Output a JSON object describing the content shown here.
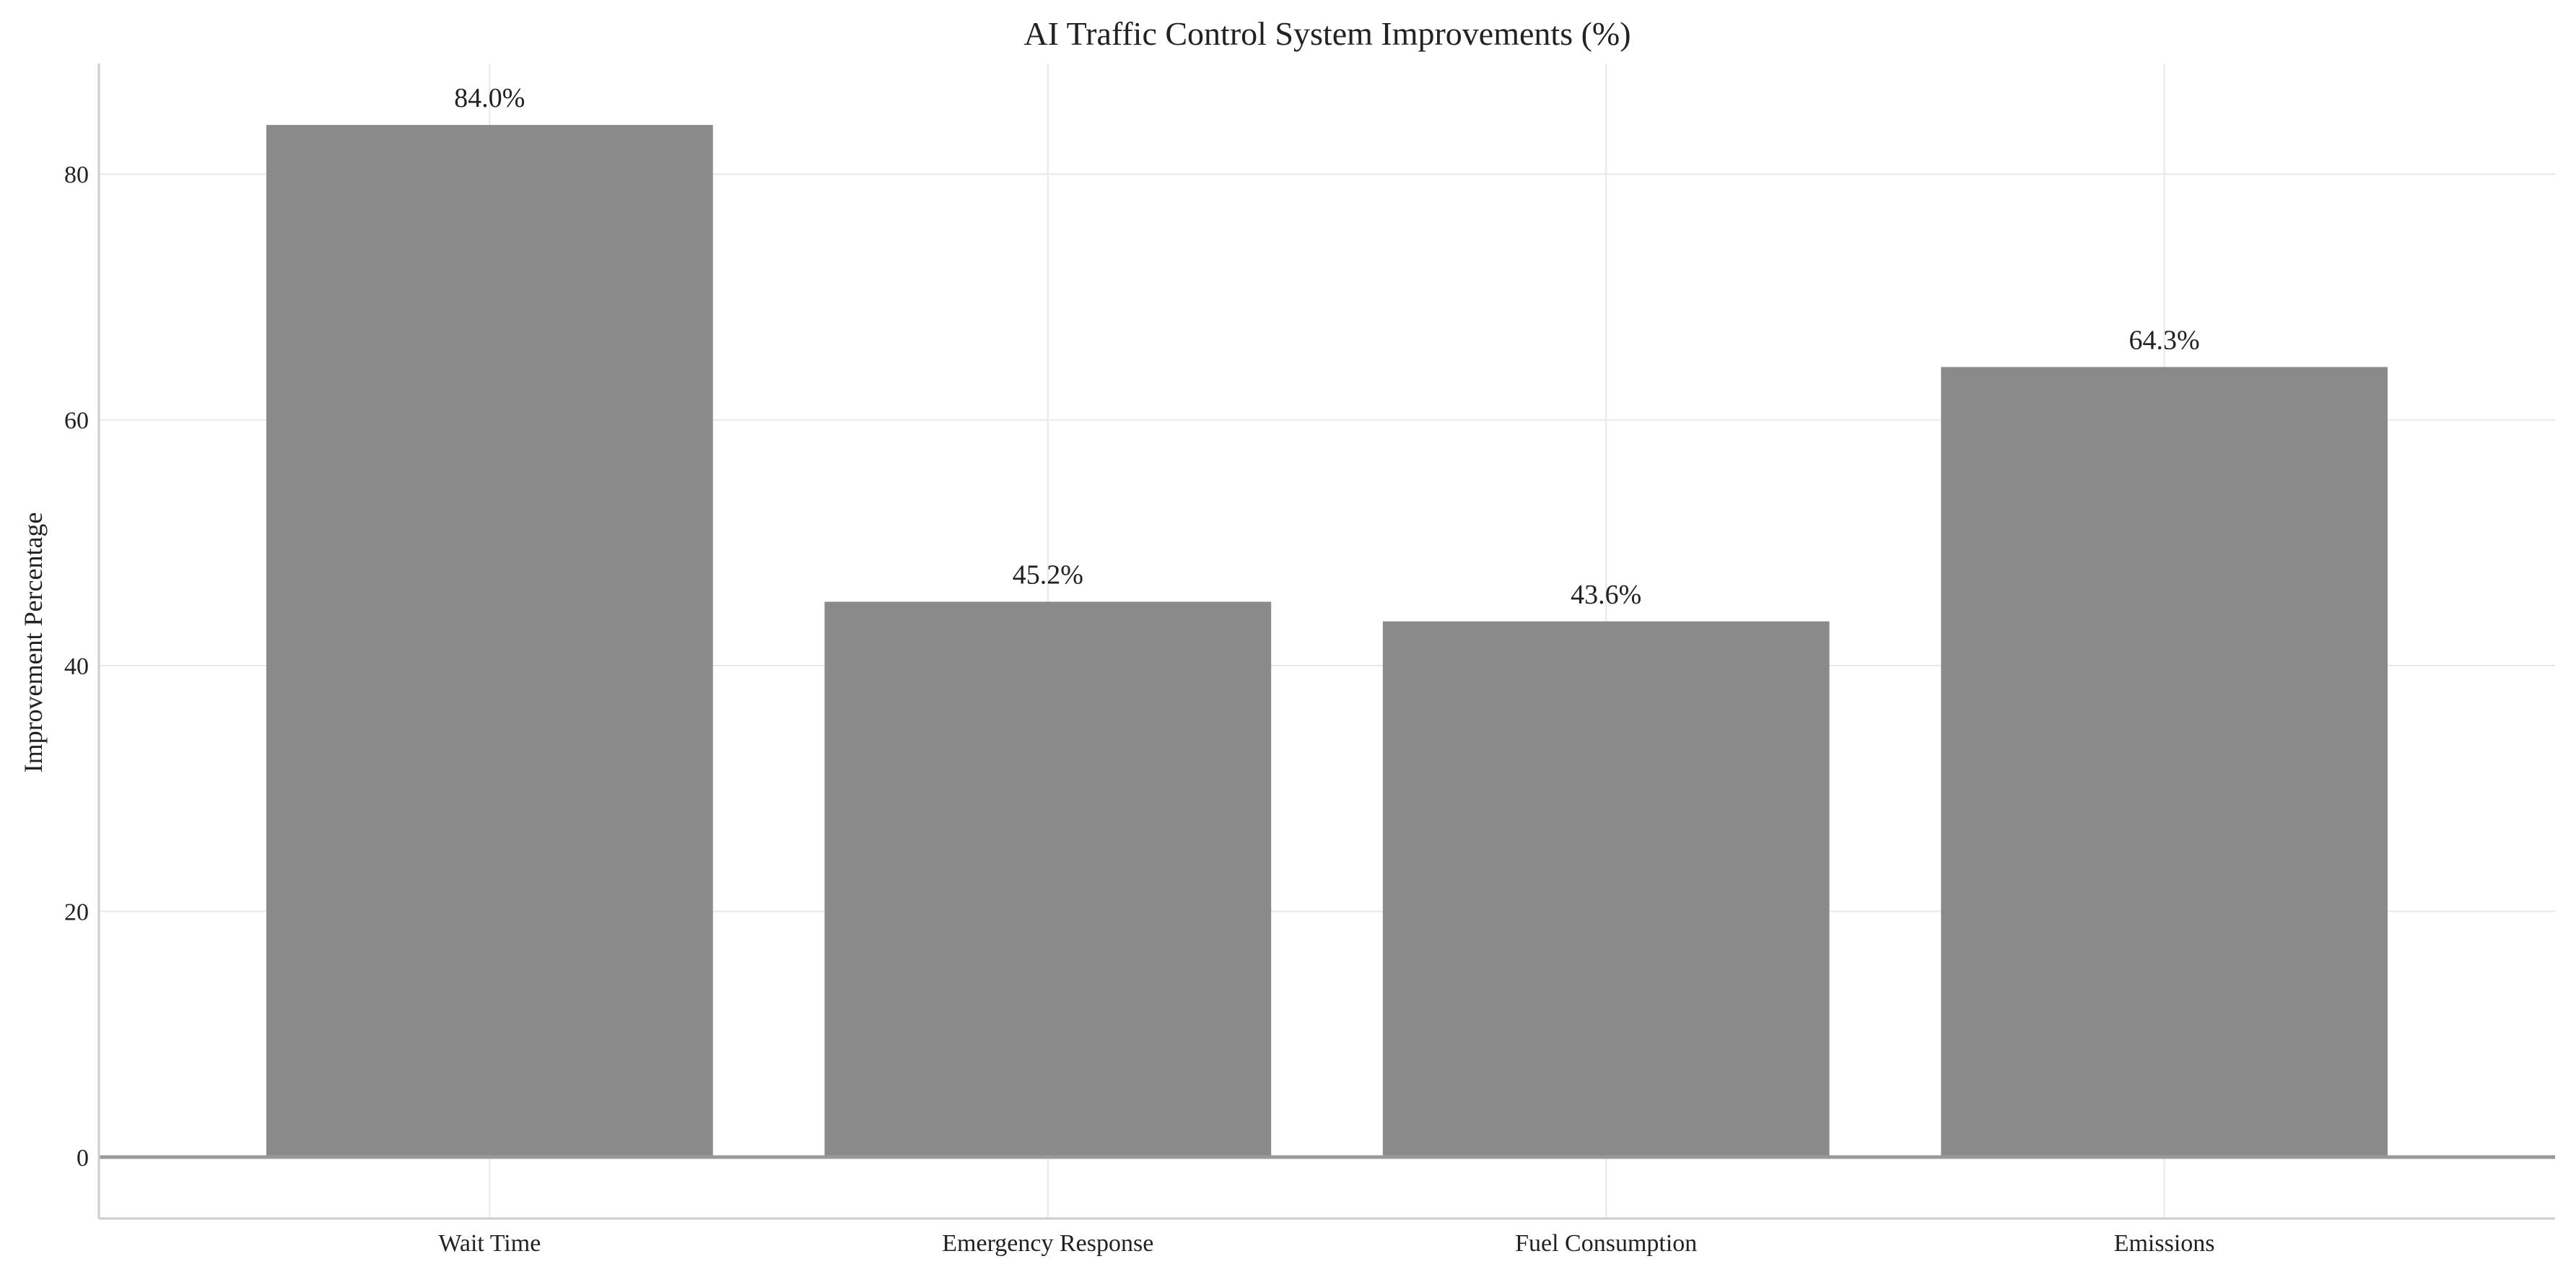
{
  "chart_data": {
    "type": "bar",
    "title": "AI Traffic Control System Improvements (%)",
    "xlabel": "",
    "ylabel": "Improvement Percentage",
    "categories": [
      "Wait Time",
      "Emergency Response",
      "Fuel Consumption",
      "Emissions"
    ],
    "values": [
      84.0,
      45.2,
      43.6,
      64.3
    ],
    "value_labels": [
      "84.0%",
      "45.2%",
      "43.6%",
      "64.3%"
    ],
    "ylim": [
      -5,
      89
    ],
    "yticks": [
      0,
      20,
      40,
      60,
      80
    ],
    "grid": true,
    "legend": "none",
    "colors": {
      "bar": "#8a8a8a",
      "grid": "#e8e8e8",
      "zero_line": "#999999",
      "axis": "#cccccc"
    }
  }
}
